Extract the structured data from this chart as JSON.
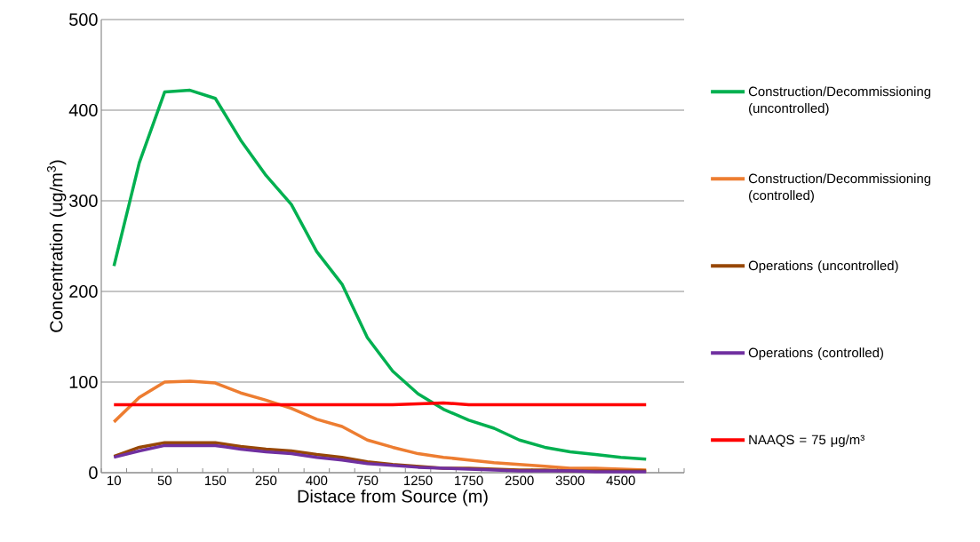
{
  "chart_data": {
    "type": "line",
    "xlabel": "Distace from Source (m)",
    "ylabel": "Concentration (ug/m$^{3}$)",
    "categories": [
      "10",
      null,
      "50",
      null,
      "150",
      null,
      "250",
      null,
      "400",
      null,
      "750",
      null,
      "1250",
      null,
      "1750",
      null,
      "2500",
      null,
      "3500",
      null,
      "4500",
      null,
      null
    ],
    "ylim": [
      0,
      500
    ],
    "yticks": [
      0,
      100,
      200,
      300,
      400,
      500
    ],
    "grid": "y",
    "legend": "right",
    "series": [
      {
        "name": "Construction/Decommissioning (uncontrolled)",
        "color": "#00b050",
        "values": [
          228,
          342,
          420,
          422,
          413,
          367,
          328,
          296,
          244,
          208,
          149,
          112,
          87,
          70,
          58,
          49,
          36,
          28,
          23,
          20,
          17,
          15,
          null
        ]
      },
      {
        "name": "Construction/Decommissioning (controlled)",
        "color": "#ed7d31",
        "values": [
          56,
          83,
          100,
          101,
          99,
          88,
          80,
          71,
          59,
          51,
          36,
          28,
          21,
          17,
          14,
          11,
          9,
          7,
          5,
          5,
          4,
          3,
          null
        ]
      },
      {
        "name": "Operations (uncontrolled)",
        "color": "#974706",
        "values": [
          18,
          28,
          33,
          33,
          33,
          29,
          26,
          24,
          20,
          17,
          12,
          9,
          7,
          5,
          5,
          4,
          3,
          3,
          2,
          2,
          2,
          2,
          null
        ]
      },
      {
        "name": "Operations (controlled)",
        "color": "#7030a0",
        "values": [
          17,
          24,
          30,
          30,
          30,
          26,
          23,
          21,
          17,
          14,
          10,
          8,
          6,
          5,
          4,
          3,
          2,
          2,
          2,
          1,
          1,
          1,
          null
        ]
      },
      {
        "name": "NAAQS = 75 μg/m³",
        "color": "#ff0000",
        "values": [
          75,
          75,
          75,
          75,
          75,
          75,
          75,
          75,
          75,
          75,
          75,
          75,
          76,
          77,
          75,
          75,
          75,
          75,
          75,
          75,
          75,
          75,
          null
        ]
      }
    ]
  }
}
